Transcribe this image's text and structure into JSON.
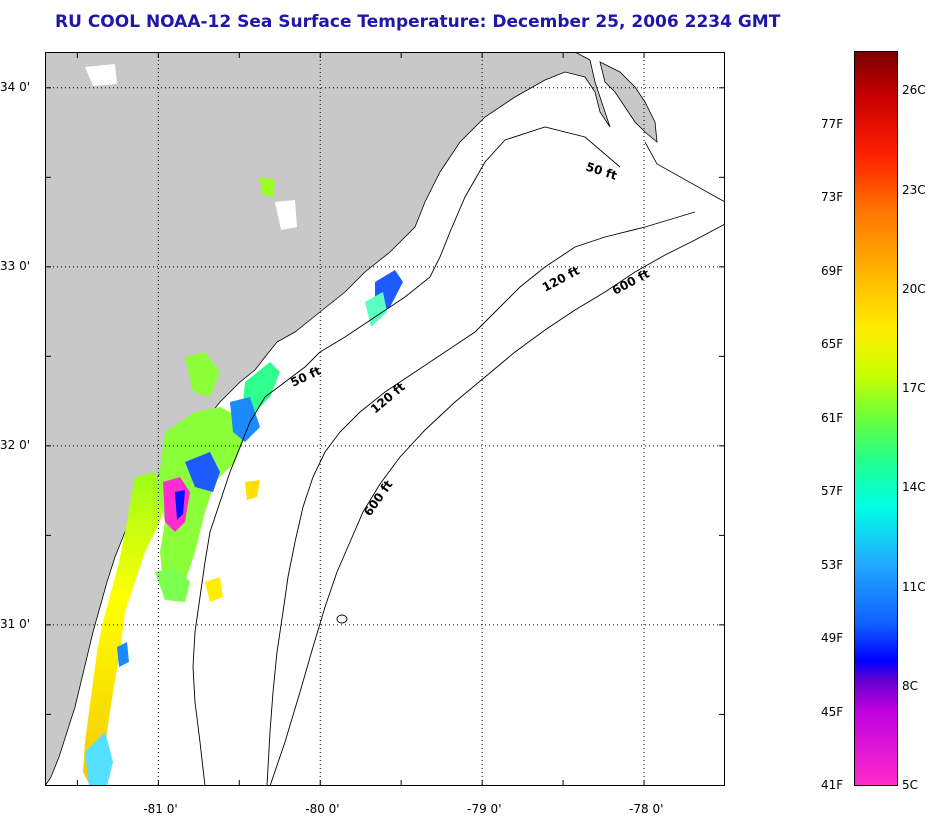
{
  "title": "RU COOL  NOAA-12  Sea Surface Temperature:  December 25, 2006 2234 GMT",
  "map": {
    "lat_labels": [
      "34 0'",
      "33 0'",
      "32 0'",
      "31 0'"
    ],
    "lon_labels": [
      "-81 0'",
      "-80 0'",
      "-79 0'",
      "-78 0'"
    ],
    "lat_values": [
      34,
      33,
      32,
      31
    ],
    "lon_values": [
      -81,
      -80,
      -79,
      -78
    ],
    "lat_range": [
      30.1,
      34.2
    ],
    "lon_range": [
      -81.7,
      -77.5
    ],
    "contours": [
      {
        "label": "50 ft"
      },
      {
        "label": "50 ft"
      },
      {
        "label": "120 ft"
      },
      {
        "label": "120 ft"
      },
      {
        "label": "600 ft"
      },
      {
        "label": "600 ft"
      }
    ],
    "colors": {
      "land": "#c8c8c8",
      "ocean": "#ffffff",
      "grid": "#000000"
    }
  },
  "colorbar": {
    "fahrenheit_labels": [
      "77F",
      "73F",
      "69F",
      "65F",
      "61F",
      "57F",
      "53F",
      "49F",
      "45F",
      "41F"
    ],
    "celsius_labels": [
      "26C",
      "23C",
      "20C",
      "17C",
      "14C",
      "11C",
      "8C",
      "5C"
    ],
    "fahrenheit_values": [
      77,
      73,
      69,
      65,
      61,
      57,
      53,
      49,
      45,
      41
    ],
    "celsius_values": [
      26,
      23,
      20,
      17,
      14,
      11,
      8,
      5
    ],
    "range_f": [
      41,
      81
    ],
    "title_color": "#1f17a8"
  }
}
